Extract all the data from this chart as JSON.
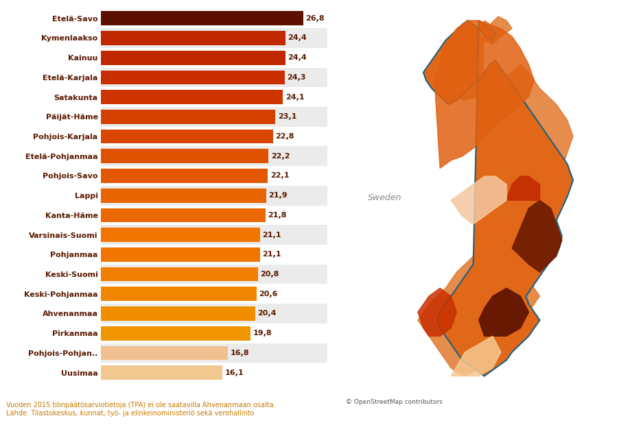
{
  "categories": [
    "Etelä-Savo",
    "Kymenlaakso",
    "Kainuu",
    "Etelä-Karjala",
    "Satakunta",
    "Päijät-Häme",
    "Pohjois-Karjala",
    "Etelä-Pohjanmaa",
    "Pohjois-Savo",
    "Lappi",
    "Kanta-Häme",
    "Varsinais-Suomi",
    "Pohjanmaa",
    "Keski-Suomi",
    "Keski-Pohjanmaa",
    "Ahvenanmaa",
    "Pirkanmaa",
    "Pohjois-Pohjan..",
    "Uusimaa"
  ],
  "values": [
    26.8,
    24.4,
    24.4,
    24.3,
    24.1,
    23.1,
    22.8,
    22.2,
    22.1,
    21.9,
    21.8,
    21.1,
    21.1,
    20.8,
    20.6,
    20.4,
    19.8,
    16.8,
    16.1
  ],
  "bar_colors": [
    "#5C1000",
    "#C02800",
    "#C02800",
    "#C82E00",
    "#CE3400",
    "#D44000",
    "#D94600",
    "#DE5200",
    "#E35800",
    "#E86400",
    "#EB6800",
    "#F07600",
    "#F07600",
    "#F07E00",
    "#F08600",
    "#F08E00",
    "#F09600",
    "#F0C090",
    "#F0C890"
  ],
  "row_colors": [
    "#FFFFFF",
    "#EBEBEB"
  ],
  "label_color": "#5A1A00",
  "footnote_line1": "Vuoden 2015 tilinpäätösarviotietoja (TPA) ei ole saatavilla Ahvenanmaan osalta.",
  "footnote_line2": "Lähde: Tilastokeskus, kunnat, työ- ja elinkeinoministeriö sekä verohallinto",
  "footnote_color": "#C87800",
  "xlim": [
    0,
    30
  ],
  "map_bg_color": "#D8E4EC",
  "sweden_label": "Sweden",
  "osm_label": "© OpenStreetMap contributors"
}
